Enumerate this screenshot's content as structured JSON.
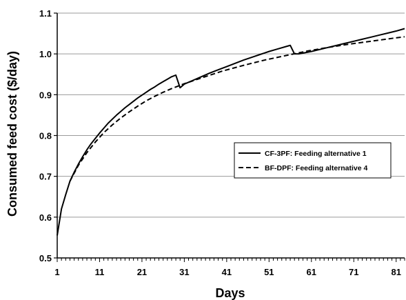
{
  "chart_data": {
    "type": "line",
    "title": "",
    "xlabel": "Days",
    "ylabel": "Consumed feed cost ($/day)",
    "xlim": [
      1,
      83
    ],
    "ylim": [
      0.5,
      1.1
    ],
    "xticks": [
      1,
      11,
      21,
      31,
      41,
      51,
      61,
      71,
      81
    ],
    "xtick_labels": [
      "1",
      "11",
      "21",
      "31",
      "41",
      "51",
      "61",
      "71",
      "81"
    ],
    "yticks": [
      0.5,
      0.6,
      0.7,
      0.8,
      0.9,
      1.0,
      1.1
    ],
    "ytick_labels": [
      "0.5",
      "0.6",
      "0.7",
      "0.8",
      "0.9",
      "1.0",
      "1.1"
    ],
    "grid": "horizontal",
    "legend_position": "right-middle",
    "series": [
      {
        "name": "CF-3PF: Feeding alternative 1",
        "style": "solid",
        "color": "#000000",
        "x": [
          1,
          2,
          3,
          4,
          5,
          6,
          7,
          8,
          9,
          10,
          11,
          12,
          13,
          14,
          15,
          16,
          17,
          18,
          19,
          20,
          21,
          22,
          23,
          24,
          25,
          26,
          27,
          28,
          29,
          30,
          31,
          33,
          35,
          37,
          39,
          41,
          43,
          45,
          47,
          49,
          51,
          53,
          55,
          56,
          57,
          58,
          59,
          61,
          63,
          65,
          67,
          69,
          71,
          73,
          75,
          77,
          79,
          81,
          83
        ],
        "y": [
          0.555,
          0.62,
          0.655,
          0.688,
          0.71,
          0.73,
          0.748,
          0.765,
          0.78,
          0.793,
          0.806,
          0.818,
          0.83,
          0.84,
          0.85,
          0.859,
          0.868,
          0.876,
          0.884,
          0.892,
          0.899,
          0.906,
          0.913,
          0.919,
          0.926,
          0.932,
          0.938,
          0.944,
          0.948,
          0.917,
          0.926,
          0.935,
          0.944,
          0.953,
          0.961,
          0.969,
          0.977,
          0.985,
          0.992,
          0.999,
          1.006,
          1.012,
          1.018,
          1.021,
          1.0,
          1.0,
          1.002,
          1.006,
          1.011,
          1.016,
          1.021,
          1.026,
          1.031,
          1.036,
          1.041,
          1.046,
          1.051,
          1.056,
          1.062
        ]
      },
      {
        "name": "BF-DPF: Feeding alternative 4",
        "style": "dashed",
        "color": "#000000",
        "x": [
          4,
          6,
          8,
          10,
          12,
          14,
          16,
          18,
          20,
          22,
          24,
          26,
          28,
          31,
          35,
          40,
          45,
          50,
          55,
          60,
          65,
          70,
          75,
          80,
          83
        ],
        "y": [
          0.688,
          0.727,
          0.758,
          0.784,
          0.807,
          0.826,
          0.843,
          0.858,
          0.872,
          0.885,
          0.896,
          0.906,
          0.915,
          0.927,
          0.941,
          0.958,
          0.972,
          0.985,
          0.996,
          1.007,
          1.016,
          1.024,
          1.031,
          1.038,
          1.042
        ]
      }
    ]
  }
}
